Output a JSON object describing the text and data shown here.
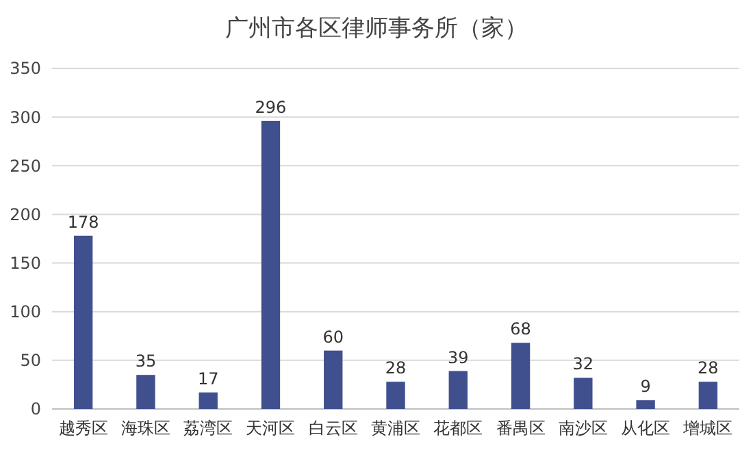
{
  "chart_data": {
    "type": "bar",
    "title": "广州市各区律师事务所（家）",
    "categories": [
      "越秀区",
      "海珠区",
      "荔湾区",
      "天河区",
      "白云区",
      "黄浦区",
      "花都区",
      "番禺区",
      "南沙区",
      "从化区",
      "增城区"
    ],
    "values": [
      178,
      35,
      17,
      296,
      60,
      28,
      39,
      68,
      32,
      9,
      28
    ],
    "color": "#40508f",
    "ylim": [
      0,
      350
    ],
    "yticks": [
      0,
      50,
      100,
      150,
      200,
      250,
      300,
      350
    ],
    "grid": "y",
    "data_labels": true
  }
}
